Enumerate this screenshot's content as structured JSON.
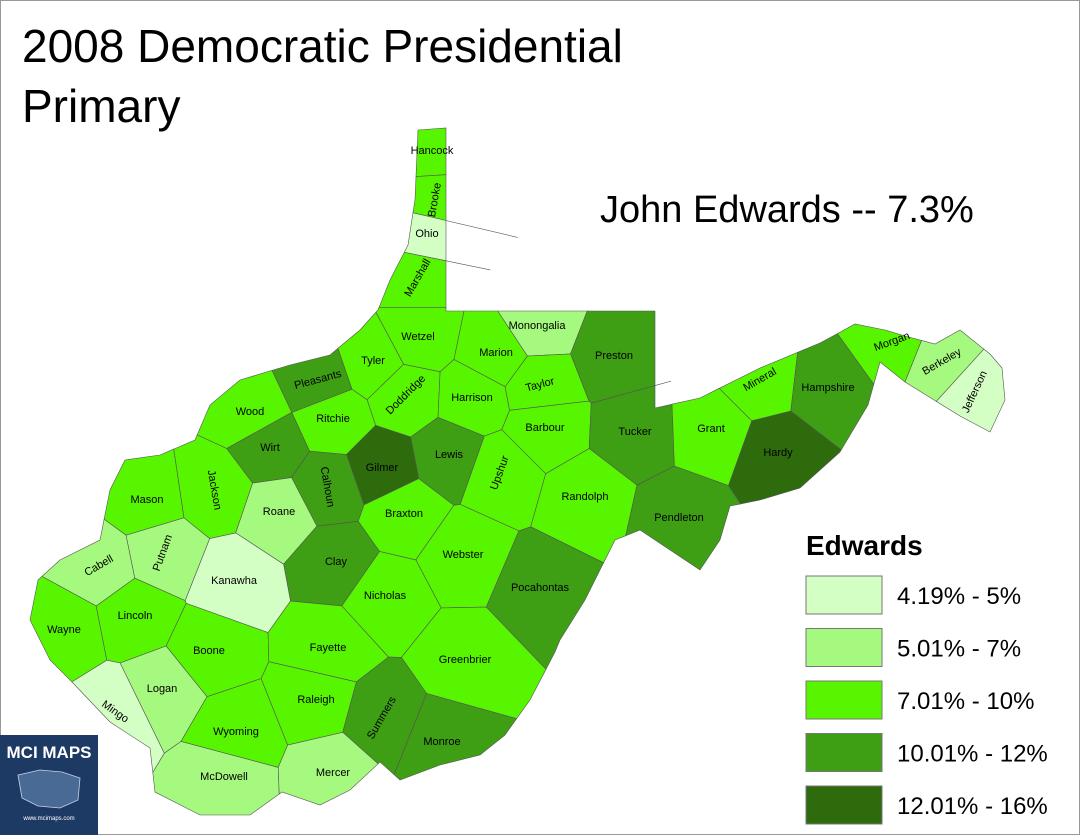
{
  "title_lines": [
    "2008 Democratic Presidential",
    "Primary"
  ],
  "subtitle": "John Edwards -- 7.3%",
  "legend": {
    "title": "Edwards",
    "items": [
      {
        "label": "4.19% - 5%",
        "color": "#d4ffc4"
      },
      {
        "label": "5.01% - 7%",
        "color": "#a6f97f"
      },
      {
        "label": "7.01% - 10%",
        "color": "#57f500"
      },
      {
        "label": "10.01% - 12%",
        "color": "#3e9e14"
      },
      {
        "label": "12.01% - 16%",
        "color": "#2d6b0d"
      }
    ]
  },
  "counties": [
    {
      "name": "Hancock",
      "bin": 2
    },
    {
      "name": "Brooke",
      "bin": 2
    },
    {
      "name": "Ohio",
      "bin": 0
    },
    {
      "name": "Marshall",
      "bin": 2
    },
    {
      "name": "Wetzel",
      "bin": 2
    },
    {
      "name": "Monongalia",
      "bin": 1
    },
    {
      "name": "Preston",
      "bin": 3
    },
    {
      "name": "Tyler",
      "bin": 2
    },
    {
      "name": "Marion",
      "bin": 2
    },
    {
      "name": "Pleasants",
      "bin": 3
    },
    {
      "name": "Doddridge",
      "bin": 2
    },
    {
      "name": "Harrison",
      "bin": 2
    },
    {
      "name": "Taylor",
      "bin": 2
    },
    {
      "name": "Wood",
      "bin": 2
    },
    {
      "name": "Ritchie",
      "bin": 2
    },
    {
      "name": "Barbour",
      "bin": 2
    },
    {
      "name": "Tucker",
      "bin": 3
    },
    {
      "name": "Grant",
      "bin": 2
    },
    {
      "name": "Mineral",
      "bin": 2
    },
    {
      "name": "Hampshire",
      "bin": 3
    },
    {
      "name": "Morgan",
      "bin": 2
    },
    {
      "name": "Berkeley",
      "bin": 1
    },
    {
      "name": "Jefferson",
      "bin": 0
    },
    {
      "name": "Hardy",
      "bin": 4
    },
    {
      "name": "Wirt",
      "bin": 3
    },
    {
      "name": "Gilmer",
      "bin": 4
    },
    {
      "name": "Lewis",
      "bin": 3
    },
    {
      "name": "Calhoun",
      "bin": 3
    },
    {
      "name": "Upshur",
      "bin": 2
    },
    {
      "name": "Jackson",
      "bin": 2
    },
    {
      "name": "Roane",
      "bin": 1
    },
    {
      "name": "Mason",
      "bin": 2
    },
    {
      "name": "Randolph",
      "bin": 2
    },
    {
      "name": "Pendleton",
      "bin": 3
    },
    {
      "name": "Braxton",
      "bin": 2
    },
    {
      "name": "Cabell",
      "bin": 1
    },
    {
      "name": "Putnam",
      "bin": 1
    },
    {
      "name": "Clay",
      "bin": 3
    },
    {
      "name": "Webster",
      "bin": 2
    },
    {
      "name": "Kanawha",
      "bin": 0
    },
    {
      "name": "Pocahontas",
      "bin": 3
    },
    {
      "name": "Nicholas",
      "bin": 2
    },
    {
      "name": "Wayne",
      "bin": 2
    },
    {
      "name": "Lincoln",
      "bin": 2
    },
    {
      "name": "Boone",
      "bin": 2
    },
    {
      "name": "Fayette",
      "bin": 2
    },
    {
      "name": "Greenbrier",
      "bin": 2
    },
    {
      "name": "Logan",
      "bin": 1
    },
    {
      "name": "Mingo",
      "bin": 0
    },
    {
      "name": "Raleigh",
      "bin": 2
    },
    {
      "name": "Summers",
      "bin": 3
    },
    {
      "name": "Monroe",
      "bin": 3
    },
    {
      "name": "Wyoming",
      "bin": 2
    },
    {
      "name": "McDowell",
      "bin": 1
    },
    {
      "name": "Mercer",
      "bin": 1
    }
  ],
  "logo": {
    "name": "MCI MAPS",
    "url": "www.mcimaps.com"
  }
}
